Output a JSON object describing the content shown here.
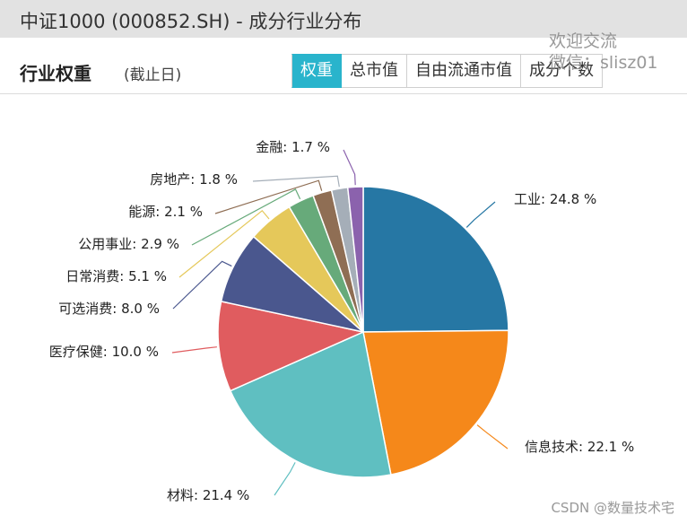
{
  "header": {
    "title": "中证1000 (000852.SH) - 成分行业分布"
  },
  "subheader": {
    "title": "行业权重",
    "date_label": "(截止日)"
  },
  "tabs": [
    {
      "label": "权重",
      "active": true
    },
    {
      "label": "总市值",
      "active": false
    },
    {
      "label": "自由流通市值",
      "active": false
    },
    {
      "label": "成分个数",
      "active": false
    }
  ],
  "watermark": {
    "line1": "欢迎交流",
    "line2": "微信：slisz01"
  },
  "footer": {
    "credit": "CSDN @数量技术宅"
  },
  "colors": {
    "accent": "#29b4cc"
  },
  "chart_data": {
    "type": "pie",
    "slices": [
      {
        "label": "工业",
        "value": 24.8,
        "text": "工业: 24.8 %",
        "color": "#2677a4"
      },
      {
        "label": "信息技术",
        "value": 22.1,
        "text": "信息技术: 22.1 %",
        "color": "#f5881a"
      },
      {
        "label": "材料",
        "value": 21.4,
        "text": "材料: 21.4 %",
        "color": "#5fbfc1"
      },
      {
        "label": "医疗保健",
        "value": 10.0,
        "text": "医疗保健: 10.0 %",
        "color": "#e05c5f"
      },
      {
        "label": "可选消费",
        "value": 8.0,
        "text": "可选消费: 8.0 %",
        "color": "#4a578e"
      },
      {
        "label": "日常消费",
        "value": 5.1,
        "text": "日常消费: 5.1 %",
        "color": "#e5c85a"
      },
      {
        "label": "公用事业",
        "value": 2.9,
        "text": "公用事业: 2.9 %",
        "color": "#67aa7a"
      },
      {
        "label": "能源",
        "value": 2.1,
        "text": "能源: 2.1 %",
        "color": "#8f6e54"
      },
      {
        "label": "房地产",
        "value": 1.8,
        "text": "房地产: 1.8 %",
        "color": "#a5aeb8"
      },
      {
        "label": "金融",
        "value": 1.7,
        "text": "金融: 1.7 %",
        "color": "#8b62ad"
      }
    ]
  }
}
